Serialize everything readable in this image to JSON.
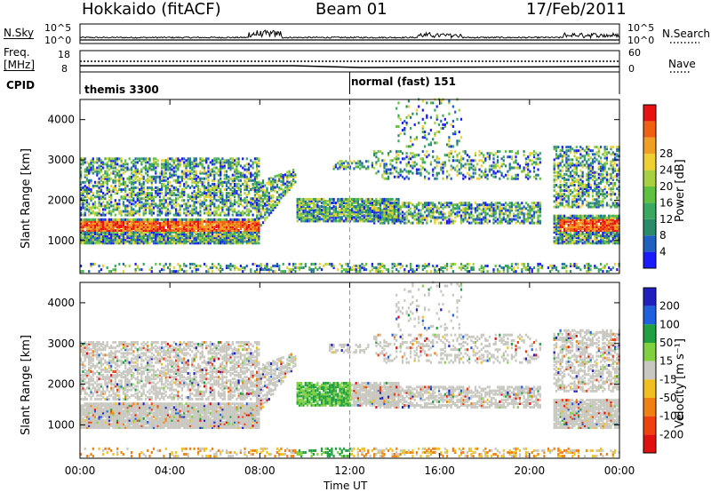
{
  "header": {
    "station": "Hokkaido (fitACF)",
    "beam": "Beam 01",
    "date": "17/Feb/2011"
  },
  "top_panels": {
    "nsky_label": "N.Sky",
    "nsky_ticks": [
      "10^5",
      "10^0"
    ],
    "nsearch_label": "N.Search",
    "nsearch_ticks": [
      "10^5",
      "10^0"
    ],
    "freq_label_1": "Freq.",
    "freq_label_2": "[MHz]",
    "freq_ticks": [
      "18",
      "8"
    ],
    "nave_label": "Nave",
    "nave_ticks": [
      "60",
      "0"
    ],
    "cpid_label": "CPID",
    "cpid_segments": [
      "themis 3300",
      "normal (fast) 151"
    ]
  },
  "chart_data": [
    {
      "type": "heatmap",
      "name": "power",
      "ylabel": "Slant Range [km]",
      "yticks": [
        "1000",
        "2000",
        "3000",
        "4000"
      ],
      "ylim": [
        180,
        4500
      ],
      "xticks": [
        "00:00",
        "04:00",
        "08:00",
        "12:00",
        "16:00",
        "20:00",
        "00:00"
      ],
      "colorbar_label": "Power [dB]",
      "colorbar_ticks": [
        "4",
        "8",
        "12",
        "16",
        "20",
        "24",
        "28"
      ],
      "colorbar_colors": [
        "#1a1aff",
        "#2060c0",
        "#2a8a6a",
        "#3aa860",
        "#60c040",
        "#a8d040",
        "#f0d030",
        "#f0a020",
        "#f06010",
        "#e81010"
      ]
    },
    {
      "type": "heatmap",
      "name": "velocity",
      "ylabel": "Slant Range [km]",
      "yticks": [
        "1000",
        "2000",
        "3000",
        "4000"
      ],
      "ylim": [
        180,
        4500
      ],
      "xticks": [
        "00:00",
        "04:00",
        "08:00",
        "12:00",
        "16:00",
        "20:00",
        "00:00"
      ],
      "xlabel": "Time UT",
      "colorbar_label": "Velocity [m s⁻¹]",
      "colorbar_ticks": [
        "200",
        "100",
        "50",
        "15",
        "-15",
        "-50",
        "-100",
        "-200"
      ],
      "colorbar_colors": [
        "#2020c0",
        "#2060e0",
        "#20a040",
        "#80d040",
        "#c8c8c0",
        "#f0c020",
        "#f08010",
        "#f04010",
        "#e01010"
      ]
    }
  ]
}
